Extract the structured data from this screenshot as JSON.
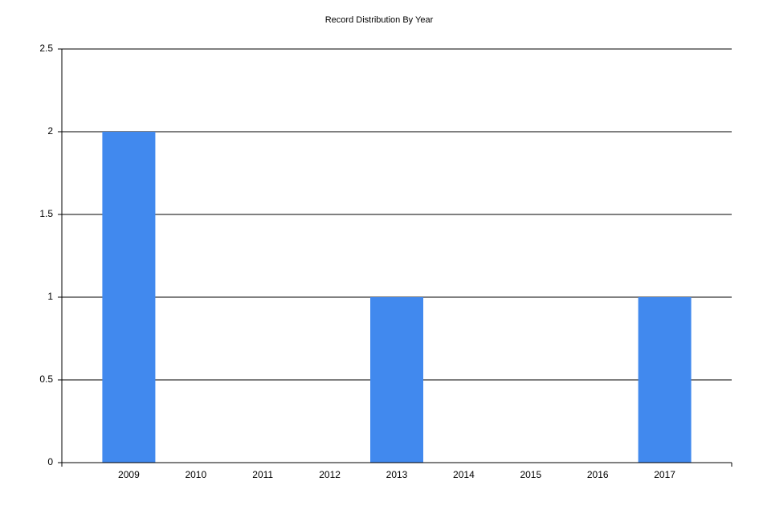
{
  "chart_data": {
    "type": "bar",
    "title": "Record Distribution By Year",
    "categories": [
      "2009",
      "2010",
      "2011",
      "2012",
      "2013",
      "2014",
      "2015",
      "2016",
      "2017"
    ],
    "values": [
      2,
      0,
      0,
      0,
      1,
      0,
      0,
      0,
      1
    ],
    "color": "#4189ee",
    "ylim": [
      0,
      2.5
    ],
    "yticks": [
      0,
      0.5,
      1,
      1.5,
      2,
      2.5
    ],
    "grid": true
  }
}
